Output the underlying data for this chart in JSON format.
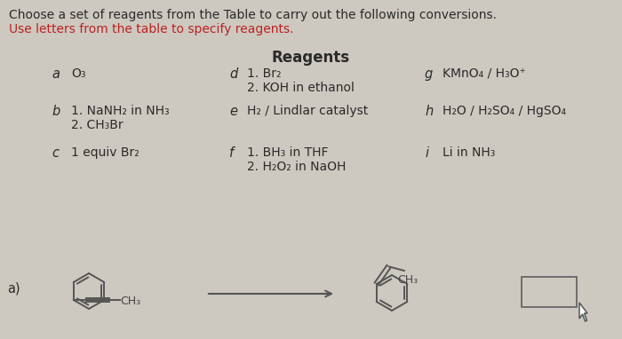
{
  "bg_color": "#cdc9c0",
  "title_line1": "Choose a set of reagents from the Table to carry out the following conversions.",
  "title_line2": "Use letters from the table to specify reagents.",
  "title_line1_color": "#2a2a2a",
  "title_line2_color": "#bb2222",
  "reagents_title": "Reagents",
  "col1_items": [
    {
      "letter": "a",
      "text": "O₃"
    },
    {
      "letter": "b",
      "text": "1. NaNH₂ in NH₃\n2. CH₃Br"
    },
    {
      "letter": "c",
      "text": "1 equiv Br₂"
    }
  ],
  "col2_items": [
    {
      "letter": "d",
      "text": "1. Br₂\n2. KOH in ethanol"
    },
    {
      "letter": "e",
      "text": "H₂ / Lindlar catalyst"
    },
    {
      "letter": "f",
      "text": "1. BH₃ in THF\n2. H₂O₂ in NaOH"
    }
  ],
  "col3_items": [
    {
      "letter": "g",
      "text": "KMnO₄ / H₃O⁺"
    },
    {
      "letter": "h",
      "text": "H₂O / H₂SO₄ / HgSO₄"
    },
    {
      "letter": "i",
      "text": "Li in NH₃"
    }
  ],
  "reaction_label": "a)",
  "product_ch3": "CH₃"
}
